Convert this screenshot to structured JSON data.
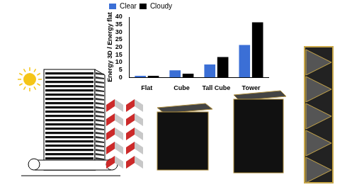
{
  "chart_data": {
    "type": "bar",
    "y_label": "Energy 3D / Energy flat",
    "categories": [
      "Flat",
      "Cube",
      "Tall Cube",
      "Tower"
    ],
    "series": [
      {
        "name": "Clear",
        "color": "#3b6fd6",
        "values": [
          1,
          4.7,
          8.5,
          21.5
        ]
      },
      {
        "name": "Cloudy",
        "color": "#000000",
        "values": [
          1,
          2.5,
          13.5,
          36.5
        ]
      }
    ],
    "ylim": [
      0,
      40
    ],
    "yticks": [
      0,
      5,
      10,
      15,
      20,
      25,
      30,
      35,
      40
    ],
    "grid": false,
    "legend": "top-left"
  }
}
